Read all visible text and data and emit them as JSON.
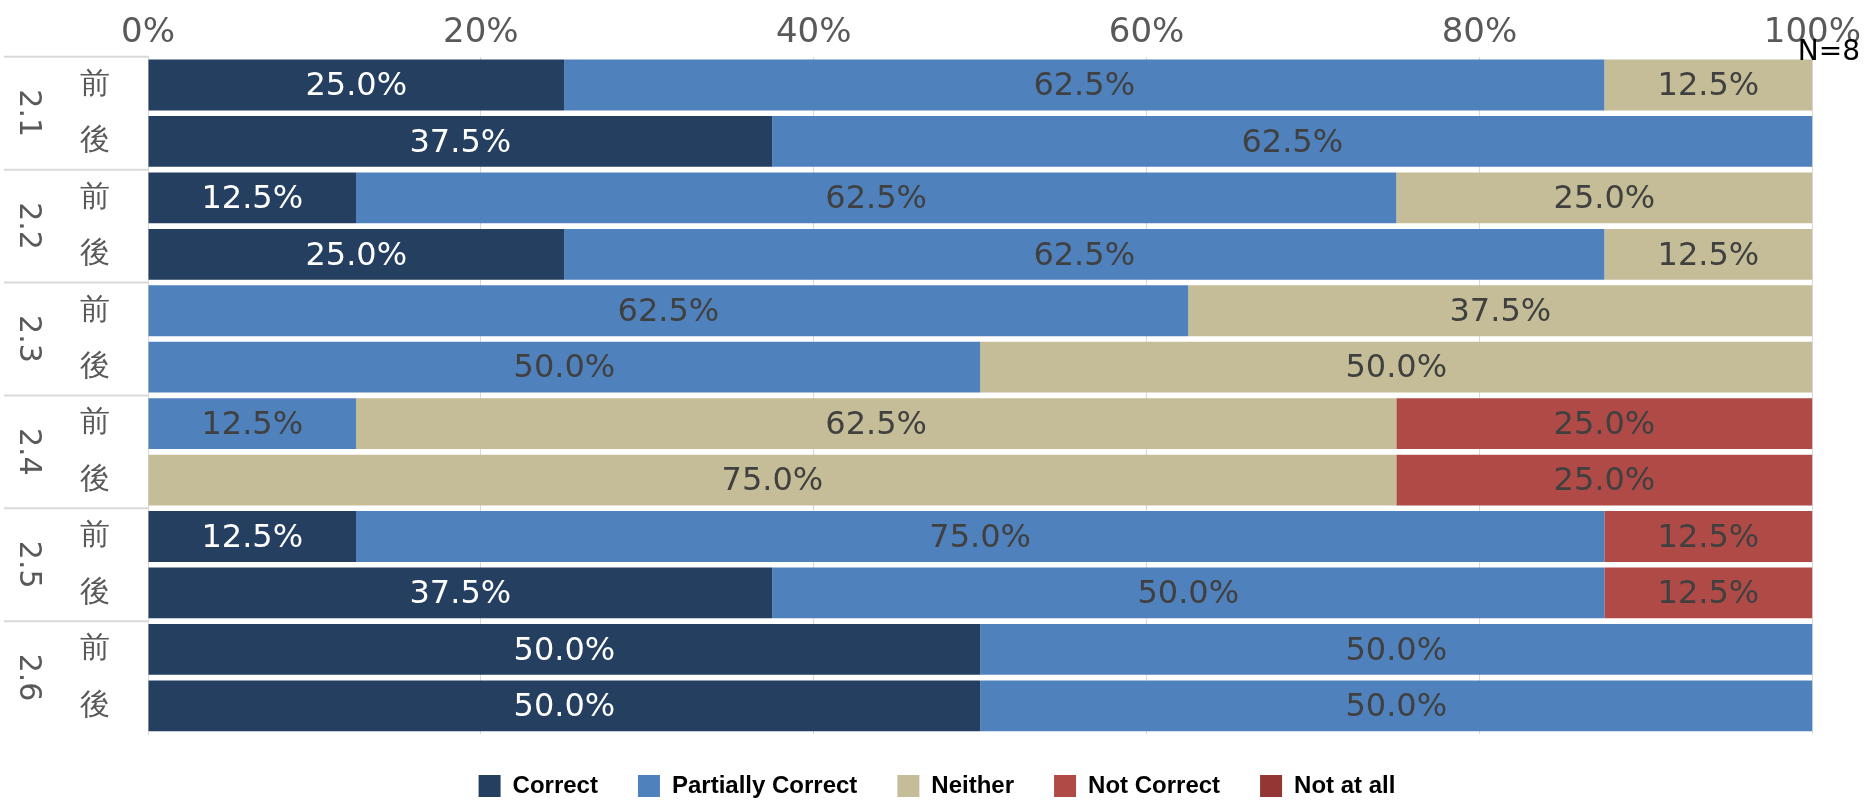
{
  "chart_data": {
    "type": "bar",
    "orientation": "horizontal",
    "stacked": true,
    "categories": [
      "前",
      "後",
      "前",
      "後",
      "前",
      "後",
      "前",
      "後",
      "前",
      "後",
      "前",
      "後"
    ],
    "series": [
      {
        "name": "Correct",
        "color": "#243f60",
        "values": [
          25,
          37.5,
          12.5,
          25,
          null,
          null,
          null,
          null,
          12.5,
          37.5,
          50,
          50
        ],
        "value_labels": [
          "25.0%",
          "37.5%",
          "12.5%",
          "25.0%",
          null,
          null,
          null,
          null,
          "12.5%",
          "37.5%",
          "50.0%",
          "50.0%"
        ]
      },
      {
        "name": "Partially Correct",
        "color": "#4f81bd",
        "values": [
          62.5,
          62.5,
          62.5,
          62.5,
          62.5,
          50,
          12.5,
          null,
          75,
          50,
          50,
          50
        ],
        "value_labels": [
          "62.5%",
          "62.5%",
          "62.5%",
          "62.5%",
          "62.5%",
          "50.0%",
          "12.5%",
          null,
          "75.0%",
          "50.0%",
          "50.0%",
          "50.0%"
        ]
      },
      {
        "name": "Neither",
        "color": "#c4bd97",
        "values": [
          12.5,
          null,
          25,
          12.5,
          37.5,
          50,
          62.5,
          75,
          null,
          null,
          null,
          null
        ],
        "value_labels": [
          "12.5%",
          null,
          "25.0%",
          "12.5%",
          "37.5%",
          "50.0%",
          "62.5%",
          "75.0%",
          null,
          null,
          null,
          null
        ]
      },
      {
        "name": "Not Correct",
        "color": "#b04a47",
        "values": [
          null,
          null,
          null,
          null,
          null,
          null,
          25,
          25,
          12.5,
          12.5,
          null,
          null
        ],
        "value_labels": [
          null,
          null,
          null,
          null,
          null,
          null,
          "25.0%",
          "25.0%",
          "12.5%",
          "12.5%",
          null,
          null
        ]
      },
      {
        "name": "Not at all",
        "color": "#943634",
        "values": [
          null,
          null,
          null,
          null,
          null,
          null,
          null,
          null,
          null,
          null,
          null,
          null
        ]
      }
    ],
    "xlim": [
      0,
      100
    ],
    "xticks": [
      {
        "value": 0,
        "label": "0%"
      },
      {
        "value": 20,
        "label": "20%"
      },
      {
        "value": 40,
        "label": "40%"
      },
      {
        "value": 60,
        "label": "60%"
      },
      {
        "value": 80,
        "label": "80%"
      },
      {
        "value": 100,
        "label": "100%"
      }
    ],
    "grid": "x",
    "legend": "bottom",
    "annotations": [
      "2.1",
      "2.2",
      "2.3",
      "2.4",
      "2.5",
      "2.6",
      "N=8"
    ]
  }
}
